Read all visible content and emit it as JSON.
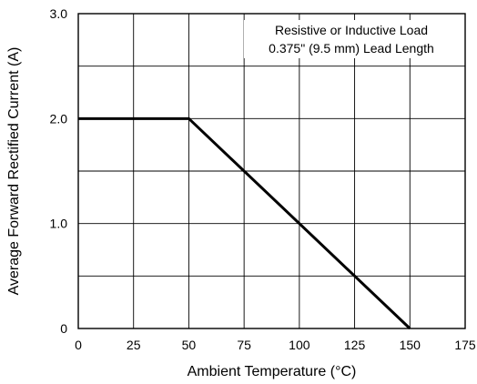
{
  "chart_data": {
    "type": "line",
    "xlabel": "Ambient Temperature (°C)",
    "ylabel": "Average Forward Rectified Current (A)",
    "xlim": [
      0,
      175
    ],
    "ylim": [
      0,
      3
    ],
    "x_ticks": [
      0,
      25,
      50,
      75,
      100,
      125,
      150,
      175
    ],
    "x_tick_labels": [
      "0",
      "25",
      "50",
      "75",
      "100",
      "125",
      "150",
      "175"
    ],
    "y_ticks": [
      0,
      1,
      2,
      3
    ],
    "y_tick_labels": [
      "0",
      "1.0",
      "2.0",
      "3.0"
    ],
    "grid": true,
    "x_grid": [
      25,
      50,
      75,
      100,
      125,
      150
    ],
    "y_grid": [
      0.5,
      1,
      1.5,
      2,
      2.5
    ],
    "annotations": [
      "Resistive or Inductive Load",
      "0.375\" (9.5 mm) Lead Length"
    ],
    "annotation_position": "top-right",
    "series": [
      {
        "x": [
          0,
          50,
          150
        ],
        "y": [
          2.0,
          2.0,
          0
        ],
        "color": "#000000"
      }
    ]
  }
}
